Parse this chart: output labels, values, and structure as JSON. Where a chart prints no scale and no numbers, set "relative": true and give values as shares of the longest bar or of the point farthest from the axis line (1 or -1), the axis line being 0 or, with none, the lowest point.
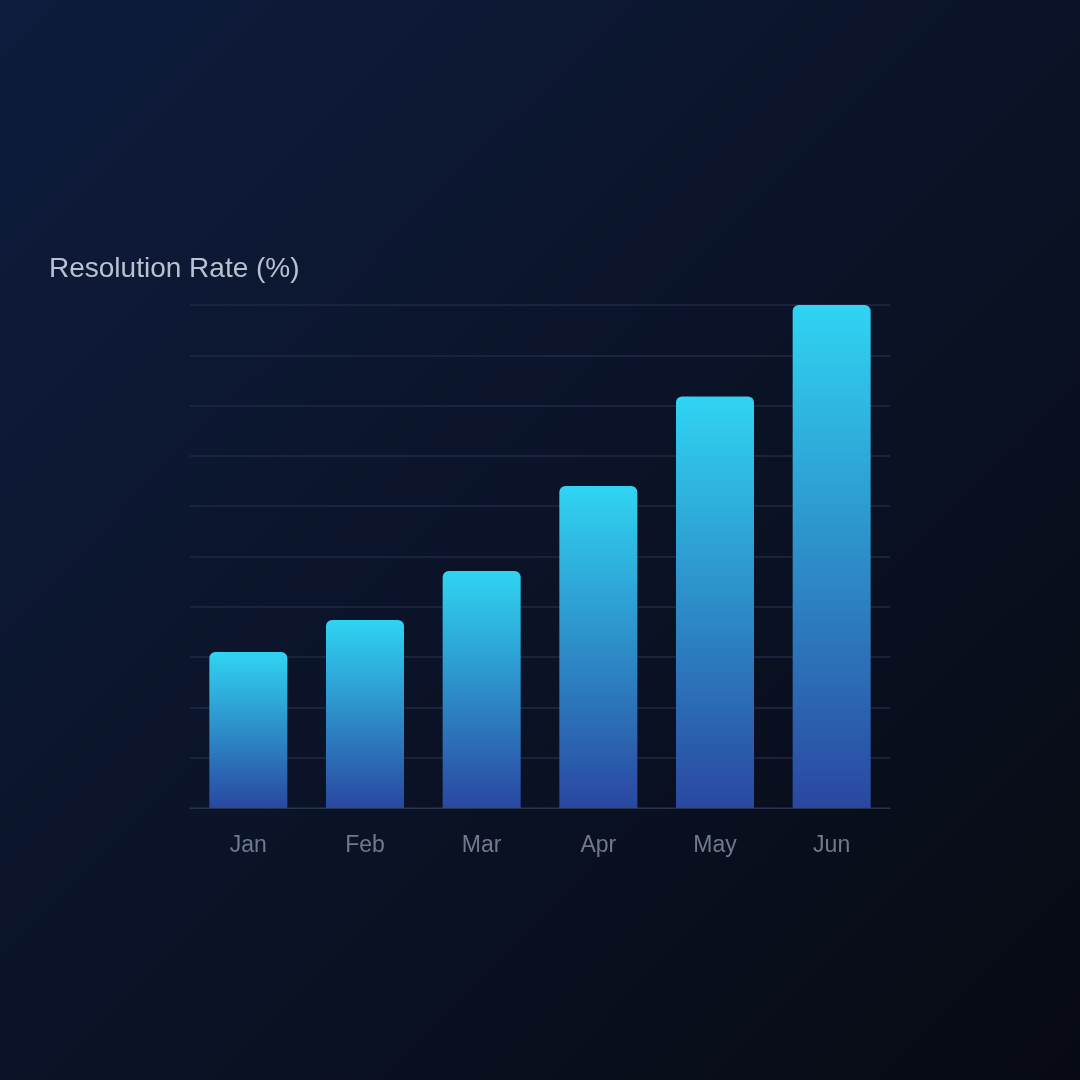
{
  "chart_data": {
    "type": "bar",
    "title": "Resolution Rate (%)",
    "categories": [
      "Jan",
      "Feb",
      "Mar",
      "Apr",
      "May",
      "Jun"
    ],
    "values": [
      0.31,
      0.374,
      0.471,
      0.64,
      0.818,
      1
    ],
    "color": "#30d4f2",
    "relative": true,
    "grid": "y"
  }
}
